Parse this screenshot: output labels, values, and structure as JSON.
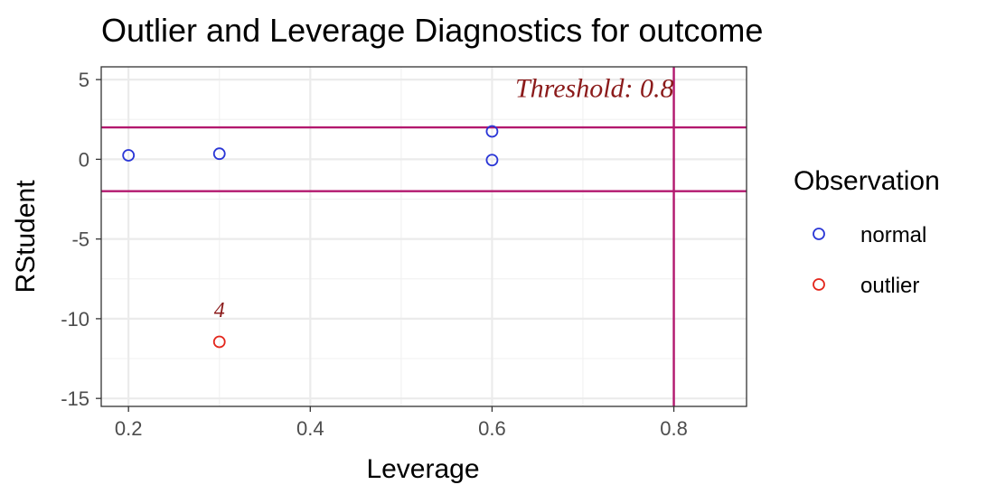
{
  "chart_data": {
    "type": "scatter",
    "title": "Outlier and Leverage Diagnostics for outcome",
    "xlabel": "Leverage",
    "ylabel": "RStudent",
    "xlim": [
      0.17,
      0.88
    ],
    "ylim": [
      -15.5,
      5.8
    ],
    "x_ticks": [
      0.2,
      0.4,
      0.6,
      0.8
    ],
    "x_tick_labels": [
      "0.2",
      "0.4",
      "0.6",
      "0.8"
    ],
    "y_ticks": [
      5,
      0,
      -5,
      -10,
      -15
    ],
    "y_tick_labels": [
      "5",
      "0",
      "-5",
      "-10",
      "-15"
    ],
    "grid": true,
    "series": [
      {
        "name": "normal",
        "color": "#2a36d6",
        "x": [
          0.2,
          0.3,
          0.6,
          0.6
        ],
        "y": [
          0.25,
          0.35,
          1.75,
          -0.05
        ]
      },
      {
        "name": "outlier",
        "color": "#e3261c",
        "x": [
          0.3
        ],
        "y": [
          -11.45
        ]
      }
    ],
    "reference_lines": {
      "color": "#b3186e",
      "horizontal": [
        2,
        -2
      ],
      "vertical": [
        0.8
      ]
    },
    "annotations": [
      {
        "text": "Threshold: 0.8",
        "x": 0.8,
        "y": 3.9,
        "anchor": "end",
        "color": "#8b1a1a"
      },
      {
        "text": "4",
        "x": 0.3,
        "y": -9.9,
        "anchor": "middle",
        "color": "#8b1a1a"
      }
    ],
    "legend": {
      "title": "Observation",
      "position": "right",
      "entries": [
        {
          "label": "normal",
          "color": "#2a36d6"
        },
        {
          "label": "outlier",
          "color": "#e3261c"
        }
      ]
    }
  }
}
